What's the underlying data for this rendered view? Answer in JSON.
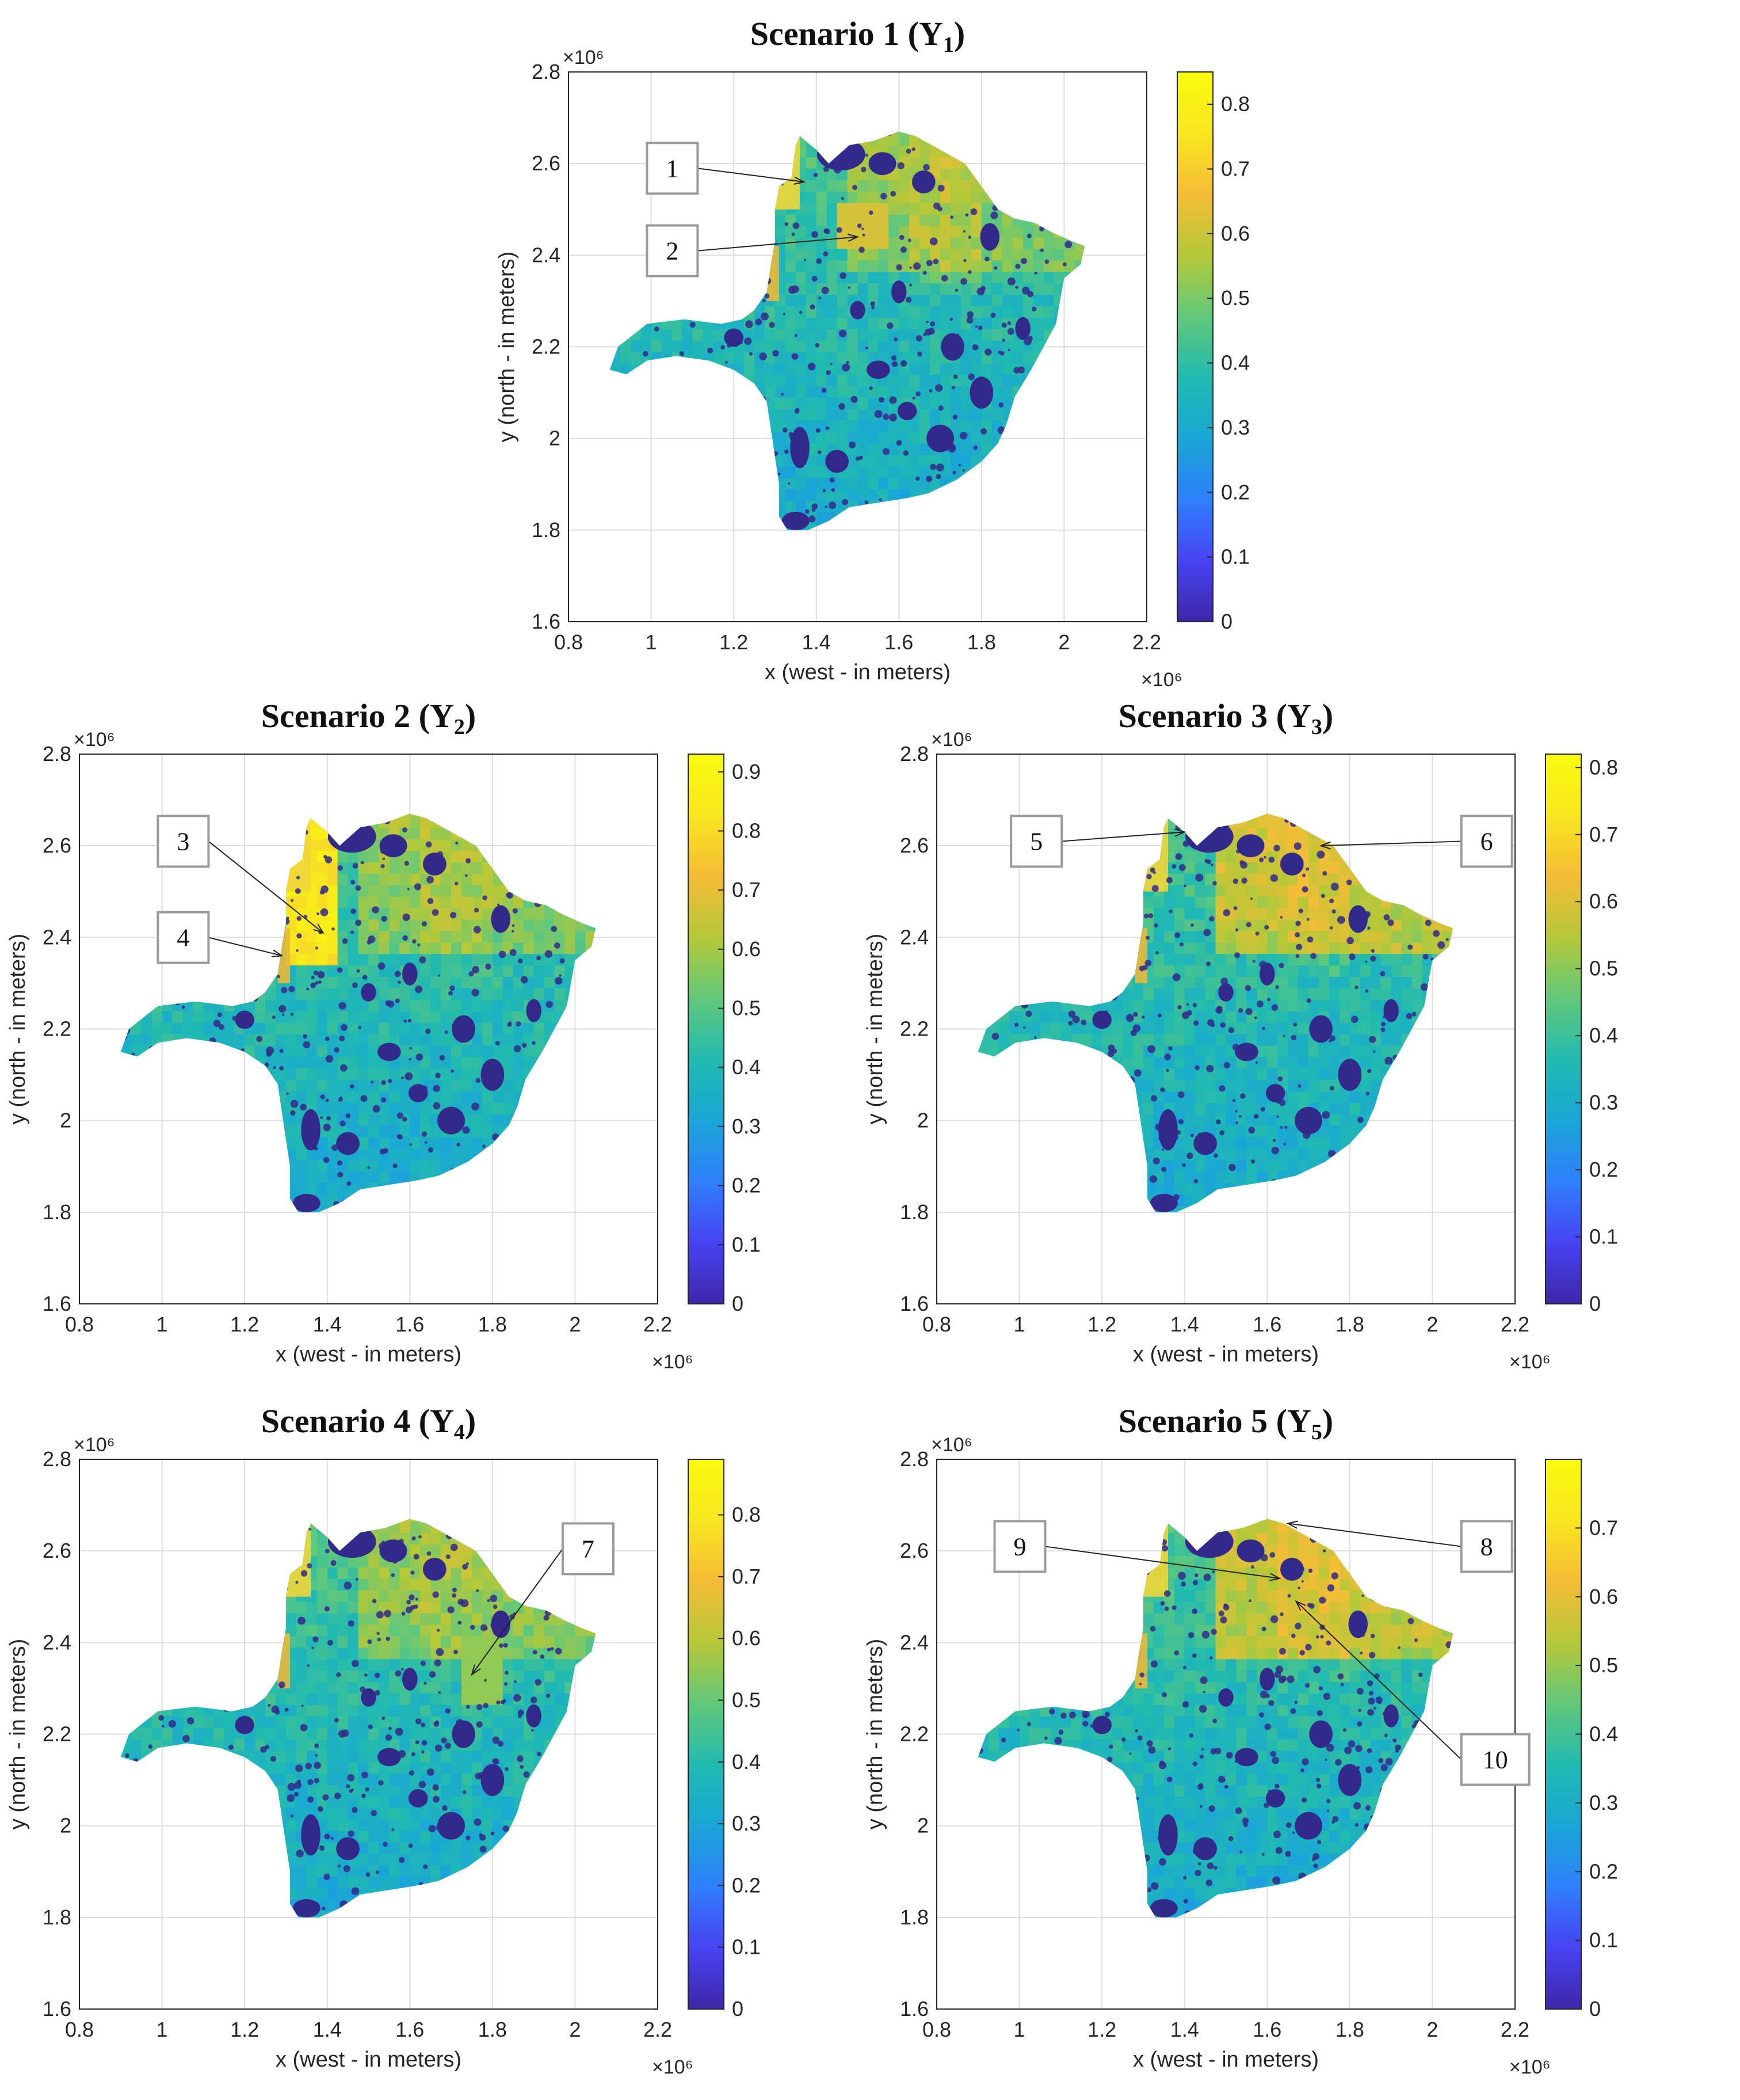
{
  "colormap": [
    "#3e26a8",
    "#4743f3",
    "#2f7ffb",
    "#1aa6d6",
    "#21bab0",
    "#62c87a",
    "#b5c838",
    "#f5bc37",
    "#f8e61f",
    "#f9fb0e"
  ],
  "colors": {
    "mask": "#33298a",
    "grid": "#dcdcdc",
    "axis": "#262626"
  },
  "axes": {
    "xlabel": "x (west - in meters)",
    "ylabel": "y (north - in meters)",
    "x_ticks": [
      "0.8",
      "1",
      "1.2",
      "1.4",
      "1.6",
      "1.8",
      "2",
      "2.2"
    ],
    "y_ticks": [
      "1.6",
      "1.8",
      "2",
      "2.2",
      "2.4",
      "2.6",
      "2.8"
    ],
    "x_multiplier": "×10⁶",
    "y_multiplier": "×10⁶"
  },
  "panels": [
    {
      "id": "s1",
      "title": "Scenario 1 (Y",
      "sub": "1",
      "title_end": ")",
      "cb_max": 0.85,
      "cb_ticks": [
        "0",
        "0.1",
        "0.2",
        "0.3",
        "0.4",
        "0.5",
        "0.6",
        "0.7",
        "0.8"
      ],
      "callouts": [
        {
          "label": "1",
          "tx": 1.37,
          "ty": 2.56
        },
        {
          "label": "2",
          "tx": 1.5,
          "ty": 2.44
        }
      ]
    },
    {
      "id": "s2",
      "title": "Scenario 2 (Y",
      "sub": "2",
      "title_end": ")",
      "cb_max": 0.93,
      "cb_ticks": [
        "0",
        "0.1",
        "0.2",
        "0.3",
        "0.4",
        "0.5",
        "0.6",
        "0.7",
        "0.8",
        "0.9"
      ],
      "callouts": [
        {
          "label": "3",
          "tx": 1.39,
          "ty": 2.41
        },
        {
          "label": "4",
          "tx": 1.29,
          "ty": 2.36
        }
      ]
    },
    {
      "id": "s3",
      "title": "Scenario 3 (Y",
      "sub": "3",
      "title_end": ")",
      "cb_max": 0.82,
      "cb_ticks": [
        "0",
        "0.1",
        "0.2",
        "0.3",
        "0.4",
        "0.5",
        "0.6",
        "0.7",
        "0.8"
      ],
      "callouts": [
        {
          "label": "5",
          "tx": 1.4,
          "ty": 2.63
        },
        {
          "label": "6",
          "tx": 1.73,
          "ty": 2.6
        }
      ]
    },
    {
      "id": "s4",
      "title": "Scenario 4 (Y",
      "sub": "4",
      "title_end": ")",
      "cb_max": 0.89,
      "cb_ticks": [
        "0",
        "0.1",
        "0.2",
        "0.3",
        "0.4",
        "0.5",
        "0.6",
        "0.7",
        "0.8"
      ],
      "callouts": [
        {
          "label": "7",
          "tx": 1.75,
          "ty": 2.33
        }
      ]
    },
    {
      "id": "s5",
      "title": "Scenario 5 (Y",
      "sub": "5",
      "title_end": ")",
      "cb_max": 0.8,
      "cb_ticks": [
        "0",
        "0.1",
        "0.2",
        "0.3",
        "0.4",
        "0.5",
        "0.6",
        "0.7"
      ],
      "callouts": [
        {
          "label": "8",
          "tx": 1.65,
          "ty": 2.66
        },
        {
          "label": "9",
          "tx": 1.63,
          "ty": 2.54
        },
        {
          "label": "10",
          "tx": 1.67,
          "ty": 2.49
        }
      ]
    }
  ]
}
